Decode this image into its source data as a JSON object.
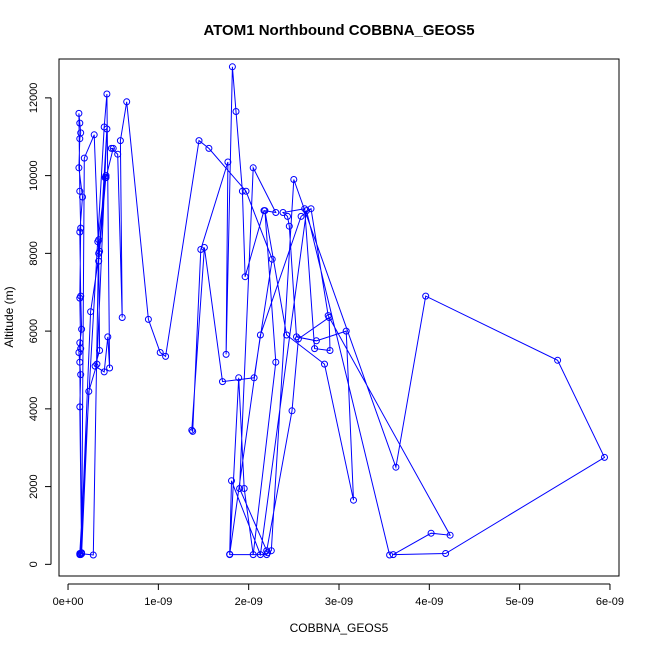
{
  "chart_data": {
    "type": "scatter",
    "title": "ATOM1 Northbound COBBNA_GEOS5",
    "xlabel": "COBBNA_GEOS5",
    "ylabel": "Altitude (m)",
    "xlim": [
      -1e-10,
      6.1e-09
    ],
    "ylim": [
      -300,
      13000
    ],
    "x_ticks": [
      0,
      1e-09,
      2e-09,
      3e-09,
      4e-09,
      5e-09,
      6e-09
    ],
    "x_tick_labels": [
      "0e+00",
      "1e-09",
      "2e-09",
      "3e-09",
      "4e-09",
      "5e-09",
      "6e-09"
    ],
    "y_ticks": [
      0,
      2000,
      4000,
      6000,
      8000,
      10000,
      12000
    ],
    "y_tick_labels": [
      "0",
      "2000",
      "4000",
      "6000",
      "8000",
      "10000",
      "12000"
    ],
    "grid": false,
    "legend": "none",
    "series": [
      {
        "color": "#0000ff",
        "marker": "open-circle",
        "connected": true,
        "x": [
          1.3e-10,
          1.5e-10,
          1.3e-10,
          1.4e-10,
          1.2e-10,
          1.3e-10,
          1.5e-10,
          1.4e-10,
          1.3e-10,
          1.6e-10,
          1.2e-10,
          1.3e-10,
          1.4e-10,
          1.3e-10,
          1.2e-10,
          1.3e-10,
          1.4e-10,
          1.3e-10,
          1.4e-10,
          1.3e-10,
          1.5e-10,
          1.4e-10,
          2.5e-10,
          3.5e-10,
          4.3e-10,
          3.2e-10,
          2.3e-10,
          1.5e-10,
          1.8e-10,
          2.9e-10,
          3.4e-10,
          4.1e-10,
          4.2e-10,
          3.4e-10,
          3.5e-10,
          3e-10,
          4e-10,
          4.4e-10,
          4.6e-10,
          4.3e-10,
          4e-10,
          1.3e-10,
          2.8e-10,
          3.4e-10,
          3.3e-10,
          4.2e-10,
          5e-10,
          4.8e-10,
          5.5e-10,
          6e-10,
          5.8e-10,
          6.5e-10,
          8.9e-10,
          1.02e-09,
          1.08e-09,
          1.45e-09,
          1.56e-09,
          1.97e-09,
          2.26e-09,
          2.06e-09,
          1.71e-09,
          1.51e-09,
          1.37e-09,
          1.38e-09,
          1.47e-09,
          1.77e-09,
          1.75e-09,
          1.82e-09,
          1.86e-09,
          1.93e-09,
          1.96e-09,
          2.17e-09,
          2.3e-09,
          2.05e-09,
          1.9e-09,
          2.2e-09,
          2.48e-09,
          2.55e-09,
          2.89e-09,
          2.9e-09,
          2.73e-09,
          2.62e-09,
          2.38e-09,
          2.43e-09,
          2.45e-09,
          2.53e-09,
          2.75e-09,
          3.08e-09,
          3.16e-09,
          2.84e-09,
          2.42e-09,
          2.18e-09,
          2.3e-09,
          2.05e-09,
          1.95e-09,
          1.89e-09,
          1.79e-09,
          2.2e-09,
          2.21e-09,
          2.25e-09,
          2.5e-09,
          3.63e-09,
          3.96e-09,
          5.42e-09,
          5.94e-09,
          4.18e-09,
          3.6e-09,
          4.02e-09,
          4.23e-09,
          2.88e-09,
          2.69e-09,
          2.58e-09,
          2.13e-09,
          1.79e-09,
          1.81e-09,
          2.13e-09,
          2.64e-09,
          3.56e-09
        ],
        "y": [
          250,
          300,
          4050,
          4880,
          5450,
          5700,
          6050,
          6900,
          8550,
          9450,
          10200,
          10950,
          11100,
          11350,
          11600,
          9600,
          8650,
          6850,
          5550,
          5200,
          270,
          250,
          6500,
          8050,
          11200,
          5150,
          4450,
          280,
          10450,
          11050,
          8000,
          9950,
          10000,
          7800,
          5500,
          5100,
          4950,
          5850,
          5050,
          12100,
          11250,
          280,
          240,
          8350,
          8300,
          9950,
          10700,
          10700,
          10550,
          6350,
          10900,
          11900,
          6300,
          5450,
          5350,
          10900,
          10700,
          9600,
          7850,
          4800,
          4700,
          8150,
          3450,
          3420,
          8100,
          10350,
          5400,
          12800,
          11650,
          9600,
          7400,
          9100,
          9050,
          10200,
          1950,
          350,
          3950,
          5800,
          6350,
          5500,
          5550,
          9150,
          9050,
          8950,
          8700,
          5850,
          5750,
          6000,
          1650,
          5150,
          5900,
          9100,
          5200,
          250,
          1950,
          4800,
          250,
          250,
          300,
          350,
          9900,
          2500,
          6900,
          5250,
          2750,
          280,
          250,
          800,
          750,
          6400,
          9150,
          8950,
          5900,
          260,
          2150,
          250,
          9100,
          240
        ]
      }
    ]
  }
}
